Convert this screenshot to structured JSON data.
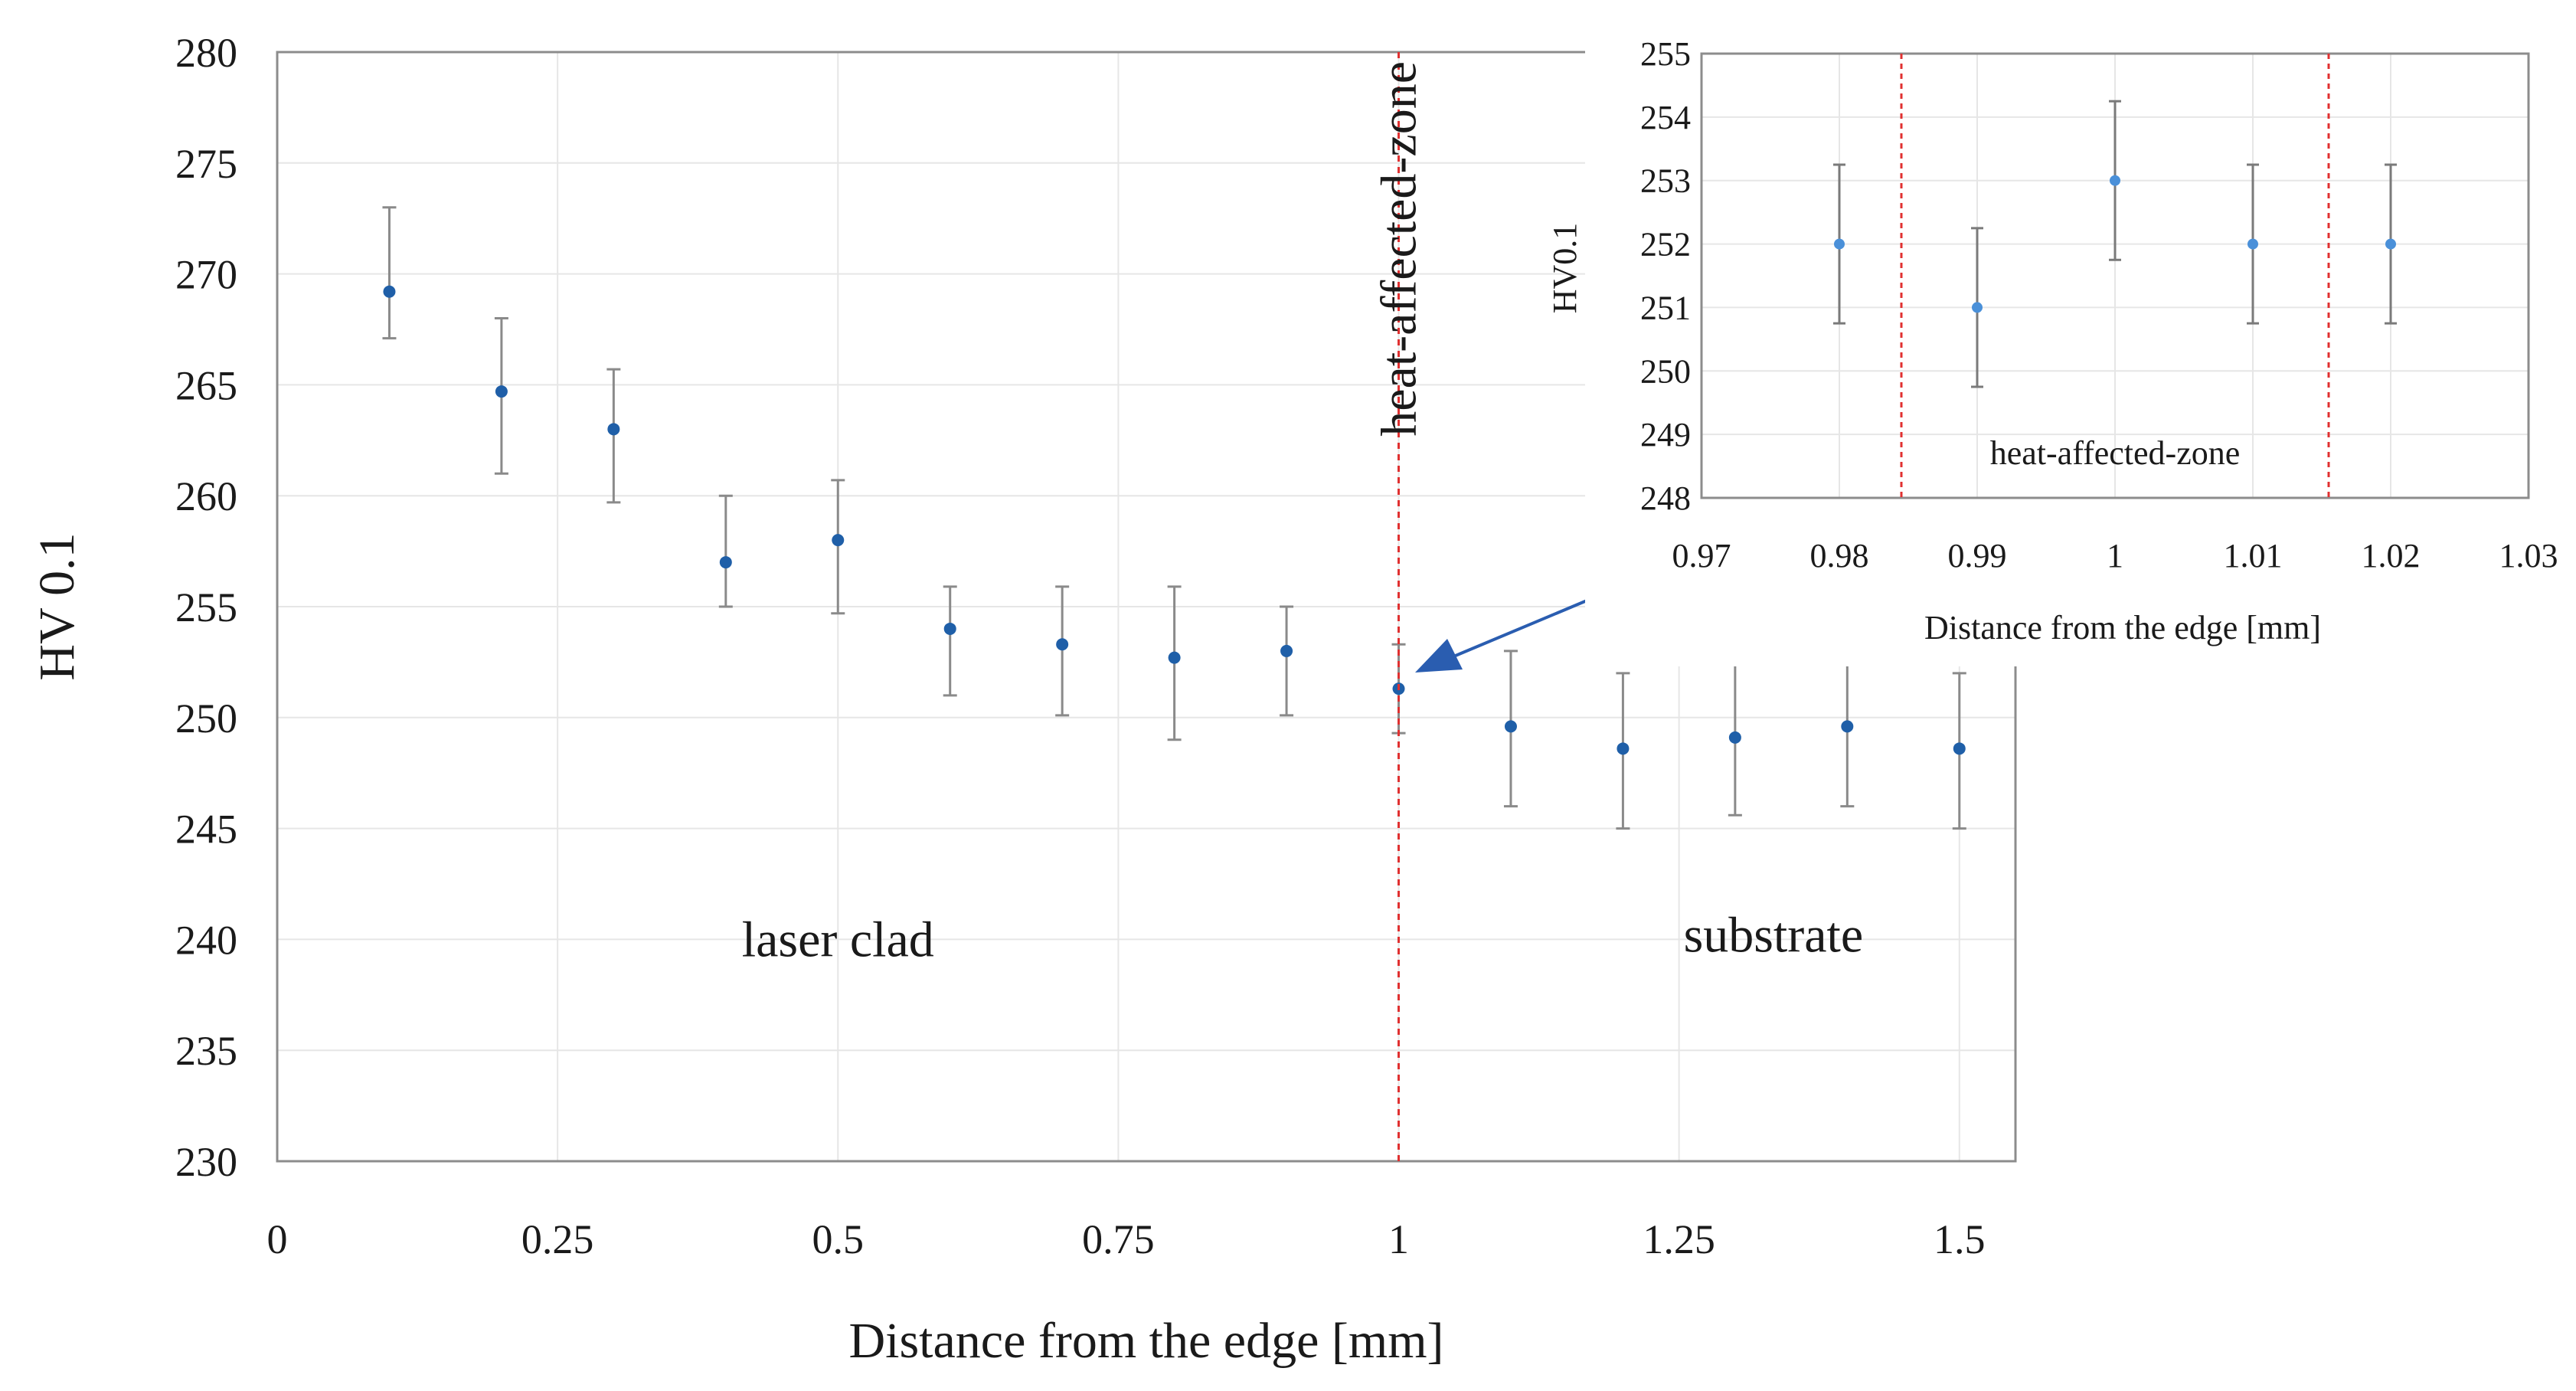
{
  "chart_data": [
    {
      "type": "scatter",
      "title": "",
      "xlabel": "Distance from the edge [mm]",
      "ylabel": "HV 0.1",
      "xlim": [
        0,
        1.55
      ],
      "ylim": [
        230,
        280
      ],
      "xticks": [
        0,
        0.25,
        0.5,
        0.75,
        1,
        1.25,
        1.5
      ],
      "xtick_labels": [
        "0",
        "0.25",
        "0.5",
        "0.75",
        "1",
        "1.25",
        "1.5"
      ],
      "yticks": [
        230,
        235,
        240,
        245,
        250,
        255,
        260,
        265,
        270,
        275,
        280
      ],
      "grid": true,
      "series": [
        {
          "name": "HV 0.1",
          "color": "#1f5fa8",
          "points": [
            {
              "x": 0.1,
              "y": 269.2,
              "err_low": 267.1,
              "err_high": 273.0
            },
            {
              "x": 0.2,
              "y": 264.7,
              "err_low": 261.0,
              "err_high": 268.0
            },
            {
              "x": 0.3,
              "y": 263.0,
              "err_low": 259.7,
              "err_high": 265.7
            },
            {
              "x": 0.4,
              "y": 257.0,
              "err_low": 255.0,
              "err_high": 260.0
            },
            {
              "x": 0.5,
              "y": 258.0,
              "err_low": 254.7,
              "err_high": 260.7
            },
            {
              "x": 0.6,
              "y": 254.0,
              "err_low": 251.0,
              "err_high": 255.9
            },
            {
              "x": 0.7,
              "y": 253.3,
              "err_low": 250.1,
              "err_high": 255.9
            },
            {
              "x": 0.8,
              "y": 252.7,
              "err_low": 249.0,
              "err_high": 255.9
            },
            {
              "x": 0.9,
              "y": 253.0,
              "err_low": 250.1,
              "err_high": 255.0
            },
            {
              "x": 1.0,
              "y": 251.3,
              "err_low": 249.3,
              "err_high": 253.3
            },
            {
              "x": 1.1,
              "y": 249.6,
              "err_low": 246.0,
              "err_high": 253.0
            },
            {
              "x": 1.2,
              "y": 248.6,
              "err_low": 245.0,
              "err_high": 252.0
            },
            {
              "x": 1.3,
              "y": 249.1,
              "err_low": 245.6,
              "err_high": 252.5
            },
            {
              "x": 1.4,
              "y": 249.6,
              "err_low": 246.0,
              "err_high": 253.0
            },
            {
              "x": 1.5,
              "y": 248.6,
              "err_low": 245.0,
              "err_high": 252.0
            }
          ]
        }
      ],
      "annotations": [
        {
          "text": "heat-affected-zone",
          "at_x": 1.0,
          "orientation": "vertical",
          "line_color": "#e03030"
        },
        {
          "text": "laser clad",
          "x": 0.5,
          "y": 240
        },
        {
          "text": "substrate",
          "x": 1.3,
          "y": 240.2
        }
      ]
    },
    {
      "type": "scatter",
      "title": "",
      "xlabel": "Distance from the edge [mm]",
      "ylabel": "HV0.1",
      "xlim": [
        0.97,
        1.03
      ],
      "ylim": [
        248,
        255
      ],
      "xticks": [
        0.97,
        0.98,
        0.99,
        1.0,
        1.01,
        1.02,
        1.03
      ],
      "xtick_labels": [
        "0.97",
        "0.98",
        "0.99",
        "1",
        "1.01",
        "1.02",
        "1.03"
      ],
      "yticks": [
        248,
        249,
        250,
        251,
        252,
        253,
        254,
        255
      ],
      "grid": true,
      "series": [
        {
          "name": "HV0.1",
          "color": "#4a90d9",
          "points": [
            {
              "x": 0.98,
              "y": 252,
              "err_low": 250.75,
              "err_high": 253.25
            },
            {
              "x": 0.99,
              "y": 251,
              "err_low": 249.75,
              "err_high": 252.25
            },
            {
              "x": 1.0,
              "y": 253,
              "err_low": 251.75,
              "err_high": 254.25
            },
            {
              "x": 1.01,
              "y": 252,
              "err_low": 250.75,
              "err_high": 253.25
            },
            {
              "x": 1.02,
              "y": 252,
              "err_low": 250.75,
              "err_high": 253.25
            }
          ]
        }
      ],
      "zone_bounds": [
        0.9845,
        1.0155
      ],
      "annotations": [
        {
          "text": "heat-affected-zone",
          "x": 1.0,
          "y": 248.7
        }
      ]
    }
  ]
}
